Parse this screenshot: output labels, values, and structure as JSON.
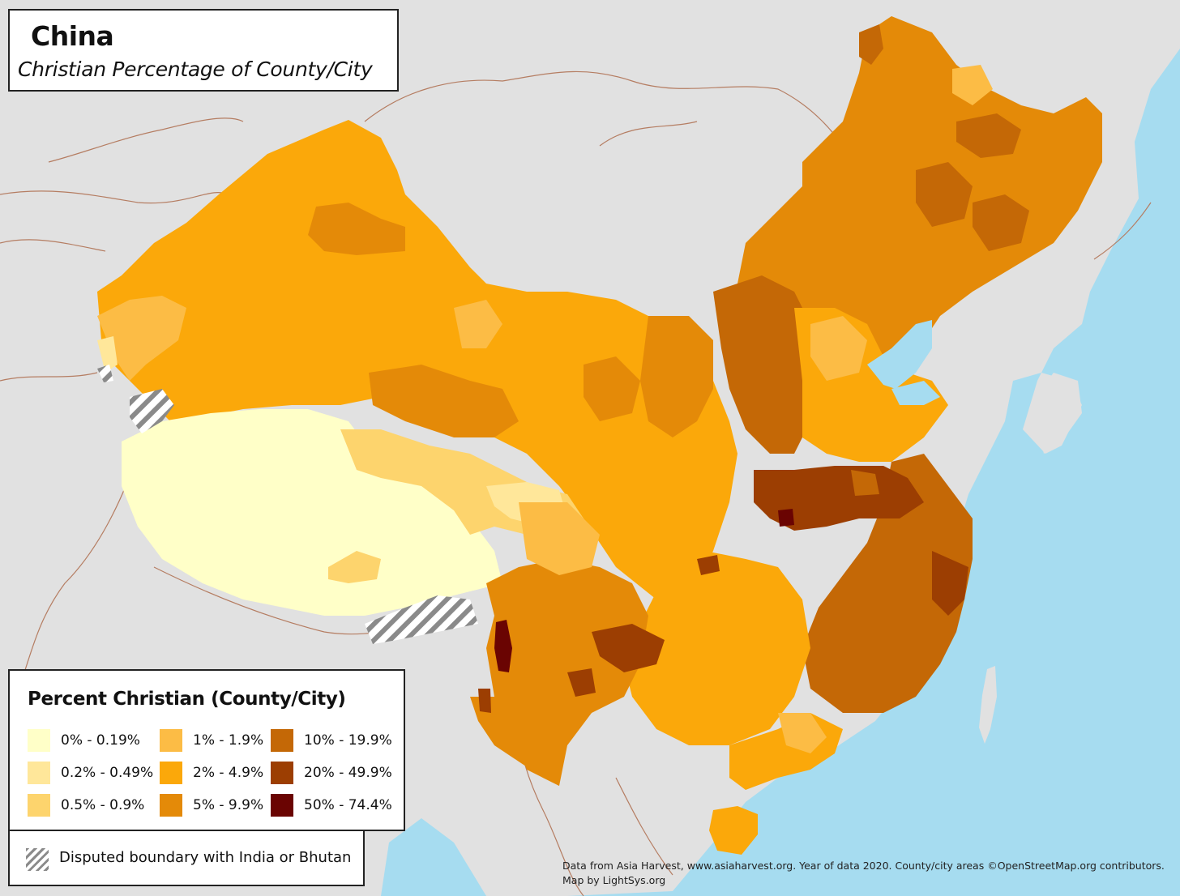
{
  "title": "China",
  "subtitle": "Christian Percentage of County/City",
  "legend": {
    "title": "Percent Christian (County/City)",
    "items": [
      {
        "label": "0% - 0.19%",
        "color": "#ffffc8"
      },
      {
        "label": "0.2% - 0.49%",
        "color": "#ffe79a"
      },
      {
        "label": "0.5% - 0.9%",
        "color": "#fdd46d"
      },
      {
        "label": "1% - 1.9%",
        "color": "#fcbc45"
      },
      {
        "label": "2% - 4.9%",
        "color": "#fba80a"
      },
      {
        "label": "5% - 9.9%",
        "color": "#e48a08"
      },
      {
        "label": "10% - 19.9%",
        "color": "#c46806"
      },
      {
        "label": "20% - 49.9%",
        "color": "#9c3e02"
      },
      {
        "label": "50% - 74.4%",
        "color": "#6a0402"
      }
    ]
  },
  "disputed": {
    "label": "Disputed boundary with India or Bhutan",
    "color": "#8a8a8a"
  },
  "credit": {
    "line1": "Data from Asia Harvest, www.asiaharvest.org. Year of data 2020. County/city areas ©OpenStreetMap.org contributors.",
    "line2": "Map by LightSys.org"
  },
  "colors": {
    "ocean": "#a6dcf0",
    "land": "#e1e1e1",
    "border": "#b57d62"
  }
}
